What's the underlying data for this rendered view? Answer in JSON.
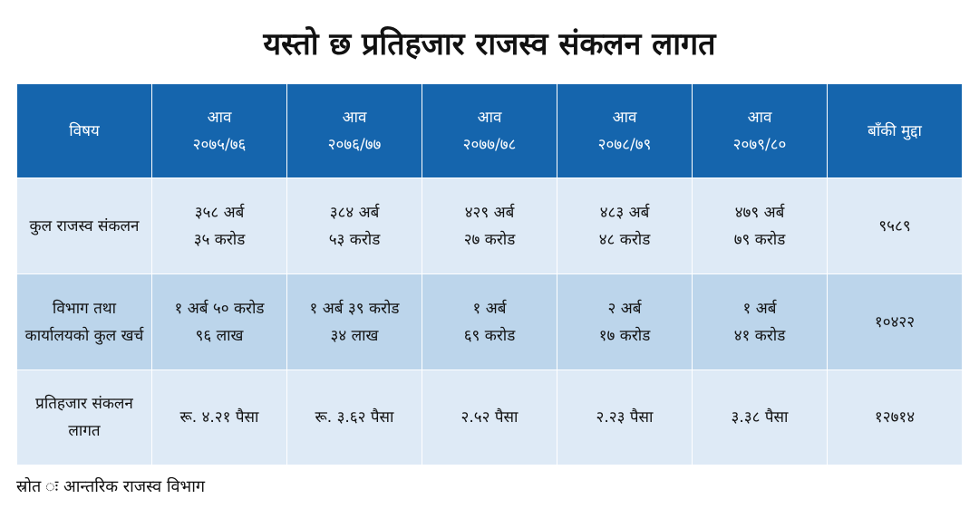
{
  "title": "यस्तो छ प्रतिहजार राजस्व संकलन लागत",
  "chart_data": {
    "type": "table",
    "title": "यस्तो छ प्रतिहजार राजस्व संकलन लागत",
    "columns": [
      {
        "label": [
          "विषय"
        ]
      },
      {
        "label": [
          "आव",
          "२०७५/७६"
        ]
      },
      {
        "label": [
          "आव",
          "२०७६/७७"
        ]
      },
      {
        "label": [
          "आव",
          "२०७७/७८"
        ]
      },
      {
        "label": [
          "आव",
          "२०७८/७९"
        ]
      },
      {
        "label": [
          "आव",
          "२०७९/८०"
        ]
      },
      {
        "label": [
          "बाँकी मुद्दा"
        ]
      }
    ],
    "rows": [
      {
        "label": [
          "कुल राजस्व संकलन"
        ],
        "cells": [
          [
            "३५८ अर्ब",
            "३५ करोड"
          ],
          [
            "३८४ अर्ब",
            "५३ करोड"
          ],
          [
            "४२९ अर्ब",
            "२७ करोड"
          ],
          [
            "४८३ अर्ब",
            "४८ करोड"
          ],
          [
            "४७९ अर्ब",
            "७९ करोड"
          ],
          [
            "९५८९"
          ]
        ]
      },
      {
        "label": [
          "विभाग तथा",
          "कार्यालयको कुल खर्च"
        ],
        "cells": [
          [
            "१ अर्ब ५० करोड",
            "९६ लाख"
          ],
          [
            "१ अर्ब ३९ करोड",
            "३४ लाख"
          ],
          [
            "१ अर्ब",
            "६९ करोड"
          ],
          [
            "२ अर्ब",
            "१७ करोड"
          ],
          [
            "१ अर्ब",
            "४१ करोड"
          ],
          [
            "१०४२२"
          ]
        ]
      },
      {
        "label": [
          "प्रतिहजार संकलन",
          "लागत"
        ],
        "cells": [
          [
            "रू. ४.२१ पैसा"
          ],
          [
            "रू. ३.६२ पैसा"
          ],
          [
            "२.५२ पैसा"
          ],
          [
            "२.२३ पैसा"
          ],
          [
            "३.३८ पैसा"
          ],
          [
            "१२७१४"
          ]
        ]
      }
    ]
  },
  "source": "स्रोत ः आन्तरिक राजस्व विभाग",
  "colors": {
    "header": "#1565ad",
    "row_light": "#deeaf6",
    "row_mid": "#bcd5eb"
  }
}
